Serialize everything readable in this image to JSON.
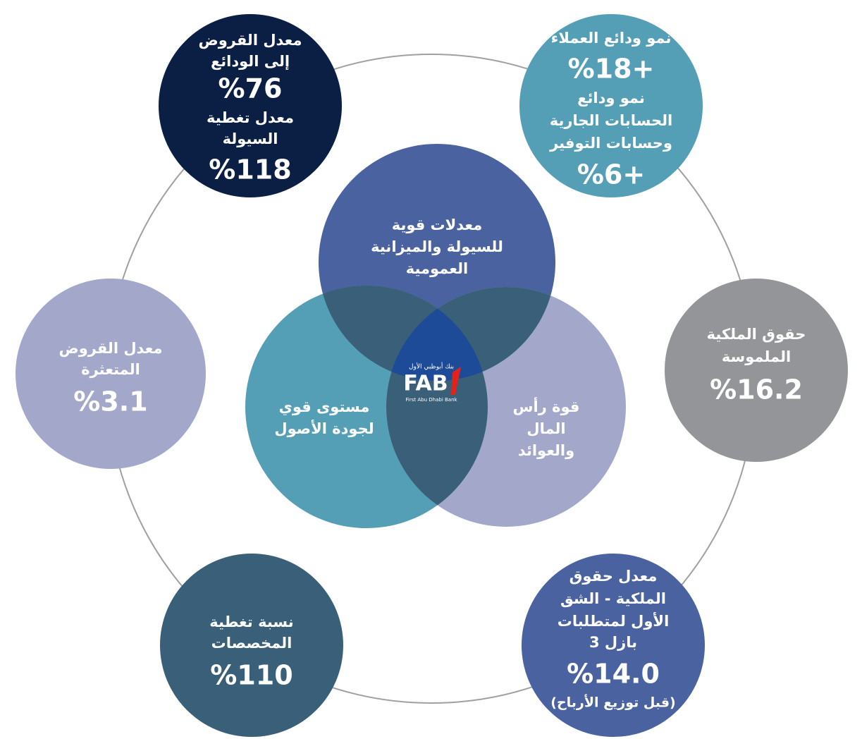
{
  "outer": [
    {
      "blocks": [
        {
          "label": [
            "معدل القروض",
            "إلى الودائع"
          ],
          "value": "%76"
        },
        {
          "label": [
            "معدل تغطية",
            "السيولة"
          ],
          "value": "%118"
        }
      ]
    },
    {
      "blocks": [
        {
          "label": [
            "نمو ودائع العملاء"
          ],
          "value": "%18+"
        },
        {
          "label": [
            "نمو ودائع",
            "الحسابات الجارية",
            "وحسابات التوفير"
          ],
          "value": "%6+"
        }
      ]
    },
    {
      "blocks": [
        {
          "label": [
            "حقوق الملكية",
            "الملموسة"
          ],
          "value": "%16.2"
        }
      ]
    },
    {
      "blocks": [
        {
          "label": [
            "معدل حقوق",
            "الملكية - الشق",
            "الأول لمتطلبات",
            "بازل 3"
          ],
          "value": "%14.0",
          "note": "(قبل توزيع الأرباح)"
        }
      ]
    },
    {
      "blocks": [
        {
          "label": [
            "نسبة تغطية",
            "المخصصات"
          ],
          "value": "%110"
        }
      ]
    },
    {
      "blocks": [
        {
          "label": [
            "معدل القروض",
            "المتعثرة"
          ],
          "value": "%3.1"
        }
      ]
    }
  ],
  "venn": [
    {
      "lines": [
        "معدلات قوية",
        "للسيولة والميزانية",
        "العمومية"
      ]
    },
    {
      "lines": [
        "مستوى قوي",
        "لجودة الأصول"
      ]
    },
    {
      "lines": [
        "قوة رأس",
        "المال",
        "والعوائد"
      ]
    }
  ],
  "logo": {
    "arabic": "بنك أبوظبي الأول",
    "mark": "FAB",
    "english": "First Abu Dhabi Bank"
  }
}
